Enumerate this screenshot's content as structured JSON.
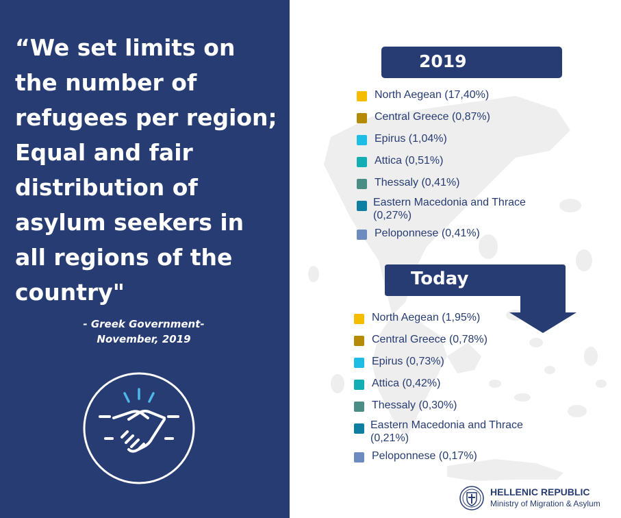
{
  "quote": {
    "text": "“We set limits on\nthe number of\nrefugees per region;\nEqual and fair\ndistribution of\nasylum seekers in\nall regions of the\ncountry\"",
    "attribution": "- Greek Government-\nNovember, 2019"
  },
  "section_2019": {
    "title": "2019",
    "items": [
      {
        "label": "North Aegean (17,40%)",
        "color": "#f5bd00"
      },
      {
        "label": "Central Greece (0,87%)",
        "color": "#b58a06"
      },
      {
        "label": "Epirus (1,04%)",
        "color": "#1dbde6"
      },
      {
        "label": "Attica (0,51%)",
        "color": "#12aeb3"
      },
      {
        "label": "Thessaly (0,41%)",
        "color": "#4a8d84"
      },
      {
        "label": "Eastern Macedonia and Thrace (0,27%)",
        "color": "#0e7fa0"
      },
      {
        "label": "Peloponnese (0,41%)",
        "color": "#6e8bc0"
      }
    ]
  },
  "section_today": {
    "title": "Today",
    "items": [
      {
        "label": "North Aegean (1,95%)",
        "color": "#f5bd00"
      },
      {
        "label": "Central Greece (0,78%)",
        "color": "#b58a06"
      },
      {
        "label": "Epirus (0,73%)",
        "color": "#1dbde6"
      },
      {
        "label": "Attica (0,42%)",
        "color": "#12aeb3"
      },
      {
        "label": "Thessaly (0,30%)",
        "color": "#4a8d84"
      },
      {
        "label": "Eastern Macedonia and Thrace (0,21%)",
        "color": "#0e7fa0"
      },
      {
        "label": "Peloponnese (0,17%)",
        "color": "#6e8bc0"
      }
    ]
  },
  "logo": {
    "line1": "HELLENIC REPUBLIC",
    "line2": "Ministry of Migration & Asylum"
  },
  "colors": {
    "navy": "#263c72",
    "icon_accent": "#4fb8e8",
    "map_gray": "#eeeeee"
  },
  "icons": {
    "handshake": "handshake-icon",
    "emblem": "greek-coat-of-arms-icon"
  }
}
